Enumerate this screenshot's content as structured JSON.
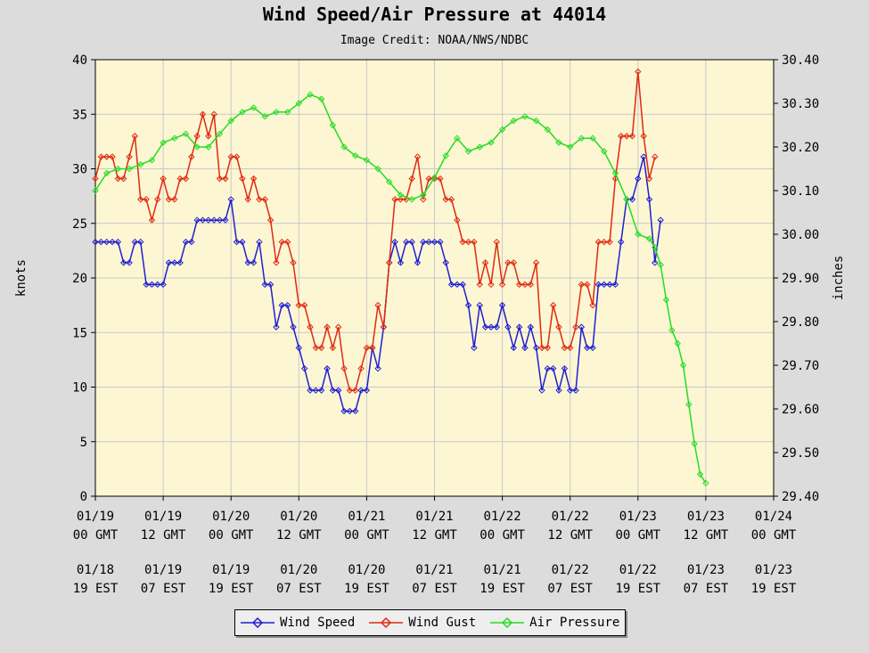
{
  "title": "Wind Speed/Air Pressure at 44014",
  "subtitle": "Image Credit: NOAA/NWS/NDBC",
  "y_left_label": "knots",
  "y_right_label": "inches",
  "y_left_ticks": [
    "0",
    "5",
    "10",
    "15",
    "20",
    "25",
    "30",
    "35",
    "40"
  ],
  "y_right_ticks": [
    "29.40",
    "29.50",
    "29.60",
    "29.70",
    "29.80",
    "29.90",
    "30.00",
    "30.10",
    "30.20",
    "30.30",
    "30.40"
  ],
  "x_gmt_date": [
    "01/19",
    "01/19",
    "01/20",
    "01/20",
    "01/21",
    "01/21",
    "01/22",
    "01/22",
    "01/23",
    "01/23",
    "01/24"
  ],
  "x_gmt_time": [
    "00 GMT",
    "12 GMT",
    "00 GMT",
    "12 GMT",
    "00 GMT",
    "12 GMT",
    "00 GMT",
    "12 GMT",
    "00 GMT",
    "12 GMT",
    "00 GMT"
  ],
  "x_est_date": [
    "01/18",
    "01/19",
    "01/19",
    "01/20",
    "01/20",
    "01/21",
    "01/21",
    "01/22",
    "01/22",
    "01/23",
    "01/23"
  ],
  "x_est_time": [
    "19 EST",
    "07 EST",
    "19 EST",
    "07 EST",
    "19 EST",
    "07 EST",
    "19 EST",
    "07 EST",
    "19 EST",
    "07 EST",
    "19 EST"
  ],
  "legend": [
    {
      "label": "Wind Speed",
      "color": "#1f1fd0"
    },
    {
      "label": "Wind Gust",
      "color": "#e02a10"
    },
    {
      "label": "Air Pressure",
      "color": "#22dd22"
    }
  ],
  "colors": {
    "plot_bg": "#fdf6d3",
    "grid": "#c8c8c8"
  },
  "chart_data": {
    "type": "line",
    "x_unit": "hours since 01/19 00 GMT",
    "xlim": [
      0,
      120
    ],
    "ylim_left": [
      0,
      40
    ],
    "ylim_right": [
      29.4,
      30.4
    ],
    "series": [
      {
        "name": "Wind Speed",
        "axis": "left",
        "points": [
          [
            0,
            23.3
          ],
          [
            1,
            23.3
          ],
          [
            2,
            23.3
          ],
          [
            3,
            23.3
          ],
          [
            4,
            23.3
          ],
          [
            5,
            21.4
          ],
          [
            6,
            21.4
          ],
          [
            7,
            23.3
          ],
          [
            8,
            23.3
          ],
          [
            9,
            19.4
          ],
          [
            10,
            19.4
          ],
          [
            11,
            19.4
          ],
          [
            12,
            19.4
          ],
          [
            13,
            21.4
          ],
          [
            14,
            21.4
          ],
          [
            15,
            21.4
          ],
          [
            16,
            23.3
          ],
          [
            17,
            23.3
          ],
          [
            18,
            25.3
          ],
          [
            19,
            25.3
          ],
          [
            20,
            25.3
          ],
          [
            21,
            25.3
          ],
          [
            22,
            25.3
          ],
          [
            23,
            25.3
          ],
          [
            24,
            27.2
          ],
          [
            25,
            23.3
          ],
          [
            26,
            23.3
          ],
          [
            27,
            21.4
          ],
          [
            28,
            21.4
          ],
          [
            29,
            23.3
          ],
          [
            30,
            19.4
          ],
          [
            31,
            19.4
          ],
          [
            32,
            15.5
          ],
          [
            33,
            17.5
          ],
          [
            34,
            17.5
          ],
          [
            35,
            15.5
          ],
          [
            36,
            13.6
          ],
          [
            37,
            11.7
          ],
          [
            38,
            9.7
          ],
          [
            39,
            9.7
          ],
          [
            40,
            9.7
          ],
          [
            41,
            11.7
          ],
          [
            42,
            9.7
          ],
          [
            43,
            9.7
          ],
          [
            44,
            7.8
          ],
          [
            45,
            7.8
          ],
          [
            46,
            7.8
          ],
          [
            47,
            9.7
          ],
          [
            48,
            9.7
          ],
          [
            49,
            13.6
          ],
          [
            50,
            11.7
          ],
          [
            51,
            15.5
          ],
          [
            52,
            21.4
          ],
          [
            53,
            23.3
          ],
          [
            54,
            21.4
          ],
          [
            55,
            23.3
          ],
          [
            56,
            23.3
          ],
          [
            57,
            21.4
          ],
          [
            58,
            23.3
          ],
          [
            59,
            23.3
          ],
          [
            60,
            23.3
          ],
          [
            61,
            23.3
          ],
          [
            62,
            21.4
          ],
          [
            63,
            19.4
          ],
          [
            64,
            19.4
          ],
          [
            65,
            19.4
          ],
          [
            66,
            17.5
          ],
          [
            67,
            13.6
          ],
          [
            68,
            17.5
          ],
          [
            69,
            15.5
          ],
          [
            70,
            15.5
          ],
          [
            71,
            15.5
          ],
          [
            72,
            17.5
          ],
          [
            73,
            15.5
          ],
          [
            74,
            13.6
          ],
          [
            75,
            15.5
          ],
          [
            76,
            13.6
          ],
          [
            77,
            15.5
          ],
          [
            78,
            13.6
          ],
          [
            79,
            9.7
          ],
          [
            80,
            11.7
          ],
          [
            81,
            11.7
          ],
          [
            82,
            9.7
          ],
          [
            83,
            11.7
          ],
          [
            84,
            9.7
          ],
          [
            85,
            9.7
          ],
          [
            86,
            15.5
          ],
          [
            87,
            13.6
          ],
          [
            88,
            13.6
          ],
          [
            89,
            19.4
          ],
          [
            90,
            19.4
          ],
          [
            91,
            19.4
          ],
          [
            92,
            19.4
          ],
          [
            93,
            23.3
          ],
          [
            94,
            27.2
          ],
          [
            95,
            27.2
          ],
          [
            96,
            29.1
          ],
          [
            97,
            31.1
          ],
          [
            98,
            27.2
          ],
          [
            99,
            21.4
          ],
          [
            100,
            25.3
          ]
        ]
      },
      {
        "name": "Wind Gust",
        "axis": "left",
        "points": [
          [
            0,
            29.1
          ],
          [
            1,
            31.1
          ],
          [
            2,
            31.1
          ],
          [
            3,
            31.1
          ],
          [
            4,
            29.1
          ],
          [
            5,
            29.1
          ],
          [
            6,
            31.1
          ],
          [
            7,
            33.0
          ],
          [
            8,
            27.2
          ],
          [
            9,
            27.2
          ],
          [
            10,
            25.3
          ],
          [
            11,
            27.2
          ],
          [
            12,
            29.1
          ],
          [
            13,
            27.2
          ],
          [
            14,
            27.2
          ],
          [
            15,
            29.1
          ],
          [
            16,
            29.1
          ],
          [
            17,
            31.1
          ],
          [
            18,
            33.0
          ],
          [
            19,
            35.0
          ],
          [
            20,
            33.0
          ],
          [
            21,
            35.0
          ],
          [
            22,
            29.1
          ],
          [
            23,
            29.1
          ],
          [
            24,
            31.1
          ],
          [
            25,
            31.1
          ],
          [
            26,
            29.1
          ],
          [
            27,
            27.2
          ],
          [
            28,
            29.1
          ],
          [
            29,
            27.2
          ],
          [
            30,
            27.2
          ],
          [
            31,
            25.3
          ],
          [
            32,
            21.4
          ],
          [
            33,
            23.3
          ],
          [
            34,
            23.3
          ],
          [
            35,
            21.4
          ],
          [
            36,
            17.5
          ],
          [
            37,
            17.5
          ],
          [
            38,
            15.5
          ],
          [
            39,
            13.6
          ],
          [
            40,
            13.6
          ],
          [
            41,
            15.5
          ],
          [
            42,
            13.6
          ],
          [
            43,
            15.5
          ],
          [
            44,
            11.7
          ],
          [
            45,
            9.7
          ],
          [
            46,
            9.7
          ],
          [
            47,
            11.7
          ],
          [
            48,
            13.6
          ],
          [
            49,
            13.6
          ],
          [
            50,
            17.5
          ],
          [
            51,
            15.5
          ],
          [
            52,
            21.4
          ],
          [
            53,
            27.2
          ],
          [
            54,
            27.2
          ],
          [
            55,
            27.2
          ],
          [
            56,
            29.1
          ],
          [
            57,
            31.1
          ],
          [
            58,
            27.2
          ],
          [
            59,
            29.1
          ],
          [
            60,
            29.1
          ],
          [
            61,
            29.1
          ],
          [
            62,
            27.2
          ],
          [
            63,
            27.2
          ],
          [
            64,
            25.3
          ],
          [
            65,
            23.3
          ],
          [
            66,
            23.3
          ],
          [
            67,
            23.3
          ],
          [
            68,
            19.4
          ],
          [
            69,
            21.4
          ],
          [
            70,
            19.4
          ],
          [
            71,
            23.3
          ],
          [
            72,
            19.4
          ],
          [
            73,
            21.4
          ],
          [
            74,
            21.4
          ],
          [
            75,
            19.4
          ],
          [
            76,
            19.4
          ],
          [
            77,
            19.4
          ],
          [
            78,
            21.4
          ],
          [
            79,
            13.6
          ],
          [
            80,
            13.6
          ],
          [
            81,
            17.5
          ],
          [
            82,
            15.5
          ],
          [
            83,
            13.6
          ],
          [
            84,
            13.6
          ],
          [
            85,
            15.5
          ],
          [
            86,
            19.4
          ],
          [
            87,
            19.4
          ],
          [
            88,
            17.5
          ],
          [
            89,
            23.3
          ],
          [
            90,
            23.3
          ],
          [
            91,
            23.3
          ],
          [
            92,
            29.1
          ],
          [
            93,
            33.0
          ],
          [
            94,
            33.0
          ],
          [
            95,
            33.0
          ],
          [
            96,
            38.9
          ],
          [
            97,
            33.0
          ],
          [
            98,
            29.1
          ],
          [
            99,
            31.1
          ]
        ]
      },
      {
        "name": "Air Pressure",
        "axis": "right",
        "points": [
          [
            0,
            30.1
          ],
          [
            2,
            30.14
          ],
          [
            4,
            30.15
          ],
          [
            6,
            30.15
          ],
          [
            8,
            30.16
          ],
          [
            10,
            30.17
          ],
          [
            12,
            30.21
          ],
          [
            14,
            30.22
          ],
          [
            16,
            30.23
          ],
          [
            18,
            30.2
          ],
          [
            20,
            30.2
          ],
          [
            22,
            30.23
          ],
          [
            24,
            30.26
          ],
          [
            26,
            30.28
          ],
          [
            28,
            30.29
          ],
          [
            30,
            30.27
          ],
          [
            32,
            30.28
          ],
          [
            34,
            30.28
          ],
          [
            36,
            30.3
          ],
          [
            38,
            30.32
          ],
          [
            40,
            30.31
          ],
          [
            42,
            30.25
          ],
          [
            44,
            30.2
          ],
          [
            46,
            30.18
          ],
          [
            48,
            30.17
          ],
          [
            50,
            30.15
          ],
          [
            52,
            30.12
          ],
          [
            54,
            30.09
          ],
          [
            56,
            30.08
          ],
          [
            58,
            30.09
          ],
          [
            60,
            30.13
          ],
          [
            62,
            30.18
          ],
          [
            64,
            30.22
          ],
          [
            66,
            30.19
          ],
          [
            68,
            30.2
          ],
          [
            70,
            30.21
          ],
          [
            72,
            30.24
          ],
          [
            74,
            30.26
          ],
          [
            76,
            30.27
          ],
          [
            78,
            30.26
          ],
          [
            80,
            30.24
          ],
          [
            82,
            30.21
          ],
          [
            84,
            30.2
          ],
          [
            86,
            30.22
          ],
          [
            88,
            30.22
          ],
          [
            90,
            30.19
          ],
          [
            92,
            30.14
          ],
          [
            94,
            30.08
          ],
          [
            96,
            30.0
          ],
          [
            98,
            29.99
          ],
          [
            99,
            29.97
          ],
          [
            100,
            29.93
          ],
          [
            101,
            29.85
          ],
          [
            102,
            29.78
          ],
          [
            103,
            29.75
          ],
          [
            104,
            29.7
          ],
          [
            105,
            29.61
          ],
          [
            106,
            29.52
          ],
          [
            107,
            29.45
          ],
          [
            108,
            29.43
          ]
        ]
      }
    ]
  }
}
